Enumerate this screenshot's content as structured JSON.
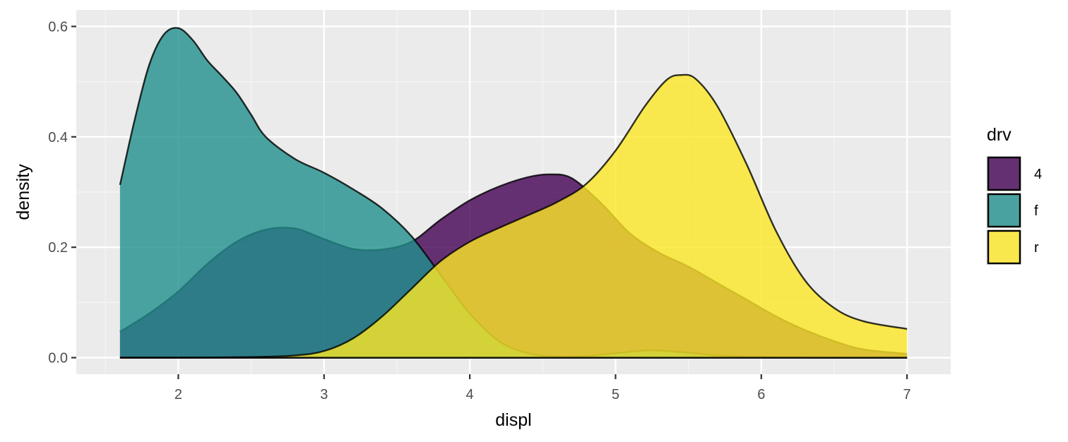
{
  "chart_data": {
    "type": "area",
    "xlabel": "displ",
    "ylabel": "density",
    "xlim": [
      1.3,
      7.3
    ],
    "ylim": [
      -0.03,
      0.63
    ],
    "x_ticks": [
      2,
      3,
      4,
      5,
      6,
      7
    ],
    "y_ticks": [
      0.0,
      0.2,
      0.4,
      0.6
    ],
    "y_tick_labels": [
      "0.0",
      "0.2",
      "0.4",
      "0.6"
    ],
    "grid": true,
    "fill_alpha": 0.8,
    "legend": {
      "title": "drv",
      "position": "right",
      "entries": [
        {
          "label": "4",
          "color": "#440154"
        },
        {
          "label": "f",
          "color": "#21908C"
        },
        {
          "label": "r",
          "color": "#FDE725"
        }
      ]
    },
    "series": [
      {
        "name": "4",
        "color": "#440154",
        "x": [
          1.6,
          1.8,
          2.0,
          2.2,
          2.4,
          2.6,
          2.8,
          3.0,
          3.2,
          3.4,
          3.6,
          3.8,
          4.0,
          4.2,
          4.4,
          4.55,
          4.7,
          4.9,
          5.1,
          5.3,
          5.5,
          5.7,
          5.9,
          6.1,
          6.3,
          6.5,
          6.7,
          7.0
        ],
        "y": [
          0.047,
          0.08,
          0.12,
          0.17,
          0.21,
          0.232,
          0.234,
          0.215,
          0.197,
          0.196,
          0.21,
          0.25,
          0.285,
          0.31,
          0.327,
          0.332,
          0.325,
          0.28,
          0.225,
          0.19,
          0.165,
          0.135,
          0.105,
          0.075,
          0.05,
          0.03,
          0.015,
          0.007
        ]
      },
      {
        "name": "f",
        "color": "#21908C",
        "x": [
          1.6,
          1.7,
          1.8,
          1.9,
          2.0,
          2.1,
          2.2,
          2.3,
          2.4,
          2.5,
          2.6,
          2.8,
          3.0,
          3.2,
          3.4,
          3.6,
          3.8,
          4.0,
          4.2,
          4.4,
          4.6,
          4.8,
          5.0,
          5.2,
          5.3,
          5.5,
          5.7,
          6.0,
          6.5,
          7.0
        ],
        "y": [
          0.313,
          0.43,
          0.53,
          0.585,
          0.597,
          0.575,
          0.538,
          0.51,
          0.48,
          0.44,
          0.4,
          0.36,
          0.335,
          0.305,
          0.27,
          0.22,
          0.15,
          0.08,
          0.03,
          0.008,
          0.002,
          0.003,
          0.008,
          0.013,
          0.013,
          0.009,
          0.004,
          0.001,
          0.0,
          0.0
        ]
      },
      {
        "name": "r",
        "color": "#FDE725",
        "x": [
          1.6,
          2.0,
          2.5,
          2.8,
          3.0,
          3.2,
          3.4,
          3.6,
          3.8,
          4.0,
          4.2,
          4.4,
          4.6,
          4.8,
          5.0,
          5.2,
          5.35,
          5.45,
          5.55,
          5.7,
          5.9,
          6.1,
          6.3,
          6.5,
          6.7,
          7.0
        ],
        "y": [
          0.0,
          0.0,
          0.001,
          0.004,
          0.012,
          0.035,
          0.075,
          0.125,
          0.175,
          0.21,
          0.235,
          0.258,
          0.282,
          0.315,
          0.375,
          0.455,
          0.503,
          0.512,
          0.505,
          0.455,
          0.35,
          0.23,
          0.14,
          0.09,
          0.066,
          0.052
        ]
      }
    ]
  }
}
